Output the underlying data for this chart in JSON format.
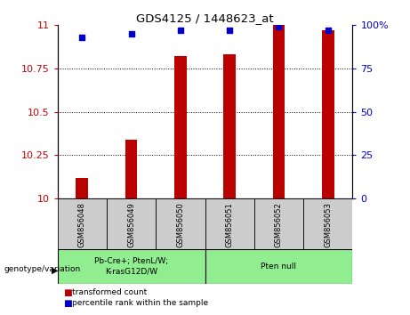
{
  "title": "GDS4125 / 1448623_at",
  "samples": [
    "GSM856048",
    "GSM856049",
    "GSM856050",
    "GSM856051",
    "GSM856052",
    "GSM856053"
  ],
  "bar_values": [
    10.12,
    10.34,
    10.82,
    10.83,
    11.0,
    10.97
  ],
  "percentile_values": [
    93,
    95,
    97,
    97,
    99,
    97
  ],
  "ylim_left": [
    10,
    11
  ],
  "ylim_right": [
    0,
    100
  ],
  "yticks_left": [
    10,
    10.25,
    10.5,
    10.75,
    11
  ],
  "yticks_right": [
    0,
    25,
    50,
    75,
    100
  ],
  "bar_color": "#bb0000",
  "percentile_color": "#0000cc",
  "group1_label": "Pb-Cre+; PtenL/W;\nK-rasG12D/W",
  "group2_label": "Pten null",
  "group_color": "#90ee90",
  "sample_box_color": "#cccccc",
  "legend_red_label": "transformed count",
  "legend_blue_label": "percentile rank within the sample",
  "left_tick_color": "#cc0000",
  "right_tick_color": "#0000cc",
  "bar_width": 0.25
}
